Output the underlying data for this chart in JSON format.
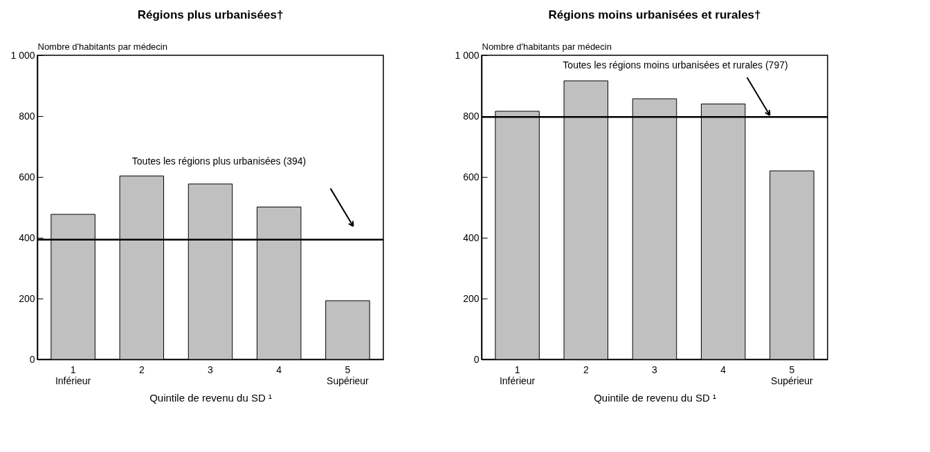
{
  "chart_data": [
    {
      "type": "bar",
      "title": "Régions plus urbanisées†",
      "xlabel": "Quintile de revenu du SD ¹",
      "ylabel": "Nombre d'habitants par médecin",
      "categories": [
        "1\nInférieur",
        "2",
        "3",
        "4",
        "5\nSupérieur"
      ],
      "values": [
        477,
        603,
        577,
        501,
        193
      ],
      "color": "#c0c0c0",
      "ylim": [
        0,
        1000
      ],
      "yticks": [
        0,
        200,
        400,
        600,
        800,
        {
          "value": 1000,
          "label": "1 000"
        }
      ],
      "ref_lines": [
        {
          "axis": "y",
          "value": 394,
          "label": "Toutes les régions plus urbanisées (394)",
          "color": "#000000"
        }
      ]
    },
    {
      "type": "bar",
      "title": "Régions moins urbanisées et rurales†",
      "xlabel": "Quintile de revenu du SD ¹",
      "ylabel": "Nombre d'habitants par médecin",
      "categories": [
        "1\nInférieur",
        "2",
        "3",
        "4",
        "5\nSupérieur"
      ],
      "values": [
        816,
        916,
        857,
        840,
        620
      ],
      "color": "#c0c0c0",
      "ylim": [
        0,
        1000
      ],
      "yticks": [
        0,
        200,
        400,
        600,
        800,
        {
          "value": 1000,
          "label": "1 000"
        }
      ],
      "ref_lines": [
        {
          "axis": "y",
          "value": 797,
          "label": "Toutes les régions moins urbanisées et rurales (797)",
          "color": "#000000"
        }
      ]
    }
  ]
}
